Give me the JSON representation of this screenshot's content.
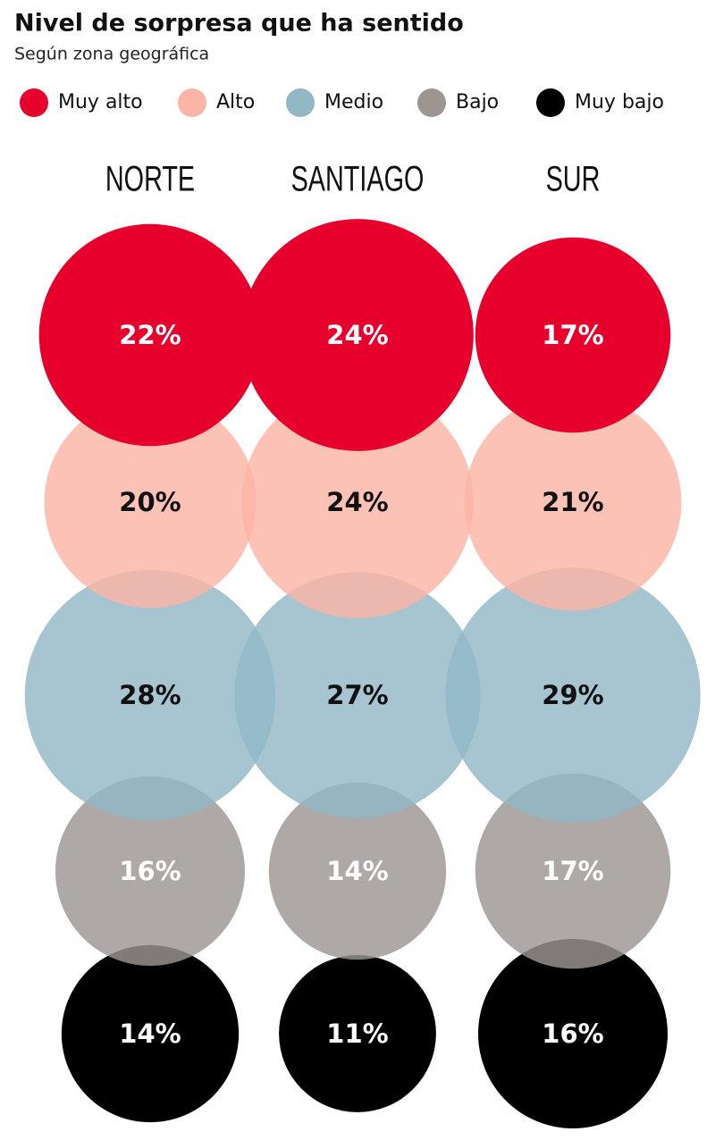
{
  "chart_data": {
    "type": "bubble-grid",
    "title": "Nivel de sorpresa que ha sentido",
    "subtitle": "Según zona geográfica",
    "categories": [
      "NORTE",
      "SANTIAGO",
      "SUR"
    ],
    "series": [
      {
        "name": "Muy alto",
        "color": "#e8002d",
        "values": [
          22,
          24,
          17
        ],
        "value_labels": [
          "22%",
          "24%",
          "17%"
        ]
      },
      {
        "name": "Alto",
        "color": "#fbb4a6",
        "values": [
          20,
          24,
          21
        ],
        "value_labels": [
          "20%",
          "24%",
          "21%"
        ]
      },
      {
        "name": "Medio",
        "color": "#92b8c6",
        "values": [
          28,
          27,
          29
        ],
        "value_labels": [
          "28%",
          "27%",
          "29%"
        ]
      },
      {
        "name": "Bajo",
        "color": "#9c9592",
        "values": [
          16,
          14,
          17
        ],
        "value_labels": [
          "16%",
          "14%",
          "17%"
        ]
      },
      {
        "name": "Muy bajo",
        "color": "#000000",
        "values": [
          14,
          11,
          16
        ],
        "value_labels": [
          "14%",
          "11%",
          "16%"
        ]
      }
    ]
  }
}
